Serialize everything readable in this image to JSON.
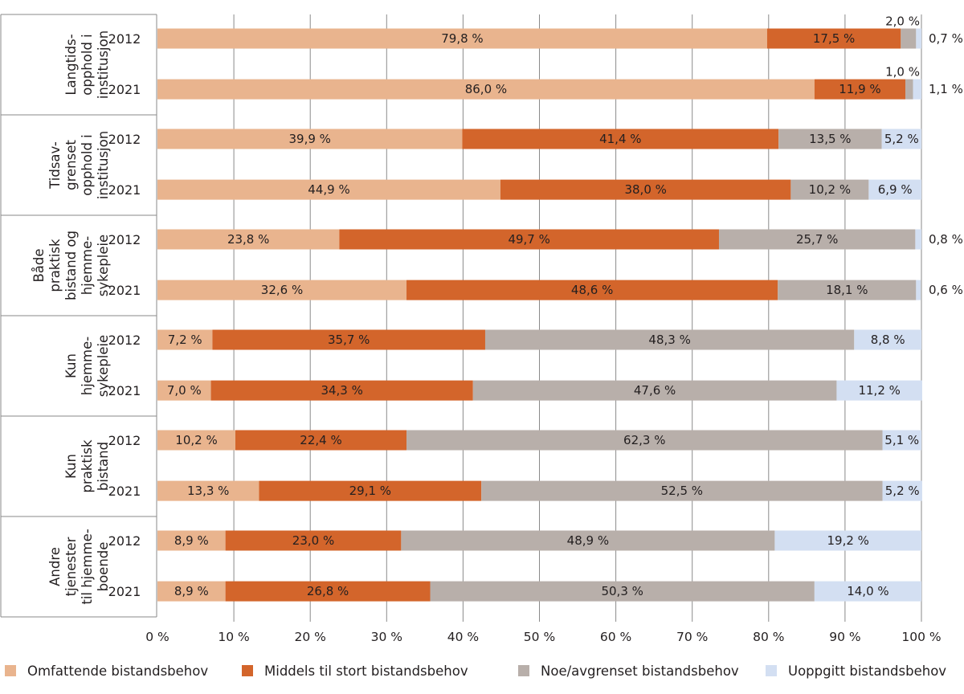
{
  "chart_data": {
    "type": "bar",
    "orientation": "horizontal",
    "stacked": true,
    "title": "",
    "xlabel": "",
    "ylabel": "",
    "xlim": [
      0,
      100
    ],
    "x_ticks": [
      "0 %",
      "10 %",
      "20 %",
      "30 %",
      "40 %",
      "50 %",
      "60 %",
      "70 %",
      "80 %",
      "90 %",
      "100 %"
    ],
    "grid": "vertical",
    "legend_position": "bottom",
    "groups": [
      {
        "label_lines": [
          "Langtids-",
          "opphold i",
          "institusjon"
        ],
        "categories": [
          "2012",
          "2021"
        ]
      },
      {
        "label_lines": [
          "Tidsav-",
          "grenset",
          "opphold i",
          "institusjon"
        ],
        "categories": [
          "2012",
          "2021"
        ]
      },
      {
        "label_lines": [
          "Både",
          "praktisk",
          "bistand og",
          "hjemme-",
          "sykepleie"
        ],
        "categories": [
          "2012",
          "2021"
        ]
      },
      {
        "label_lines": [
          "Kun",
          "hjemme-",
          "sykepleie"
        ],
        "categories": [
          "2012",
          "2021"
        ]
      },
      {
        "label_lines": [
          "Kun",
          "praktisk",
          "bistand"
        ],
        "categories": [
          "2012",
          "2021"
        ]
      },
      {
        "label_lines": [
          "Andre",
          "tjenester",
          "til hjemme-",
          "boende"
        ],
        "categories": [
          "2012",
          "2021"
        ]
      }
    ],
    "series": [
      {
        "name": "Omfattende bistandsbehov",
        "color": "#e9b48e",
        "values": [
          79.8,
          86.0,
          39.9,
          44.9,
          23.8,
          32.6,
          7.2,
          7.0,
          10.2,
          13.3,
          8.9,
          8.9
        ],
        "labels": [
          "79,8 %",
          "86,0 %",
          "39,9 %",
          "44,9 %",
          "23,8 %",
          "32,6 %",
          "7,2 %",
          "7,0 %",
          "10,2 %",
          "13,3 %",
          "8,9 %",
          "8,9 %"
        ]
      },
      {
        "name": "Middels til stort bistandsbehov",
        "color": "#d3652b",
        "values": [
          17.5,
          11.9,
          41.4,
          38.0,
          49.7,
          48.6,
          35.7,
          34.3,
          22.4,
          29.1,
          23.0,
          26.8
        ],
        "labels": [
          "17,5 %",
          "11,9 %",
          "41,4 %",
          "38,0 %",
          "49,7 %",
          "48,6 %",
          "35,7 %",
          "34,3 %",
          "22,4 %",
          "29,1 %",
          "23,0 %",
          "26,8 %"
        ]
      },
      {
        "name": "Noe/avgrenset bistandsbehov",
        "color": "#b8afaa",
        "values": [
          2.0,
          1.0,
          13.5,
          10.2,
          25.7,
          18.1,
          48.3,
          47.6,
          62.3,
          52.5,
          48.9,
          50.3
        ],
        "labels": [
          "2,0 %",
          "1,0 %",
          "13,5 %",
          "10,2 %",
          "25,7 %",
          "18,1 %",
          "48,3 %",
          "47,6 %",
          "62,3 %",
          "52,5 %",
          "48,9 %",
          "50,3 %"
        ]
      },
      {
        "name": "Uoppgitt bistandsbehov",
        "color": "#d3dff2",
        "values": [
          0.7,
          1.1,
          5.2,
          6.9,
          0.8,
          0.6,
          8.8,
          11.2,
          5.1,
          5.2,
          19.2,
          14.0
        ],
        "labels": [
          "0,7 %",
          "1,1 %",
          "5,2 %",
          "6,9 %",
          "0,8 %",
          "0,6 %",
          "8,8 %",
          "11,2 %",
          "5,1 %",
          "5,2 %",
          "19,2 %",
          "14,0 %"
        ]
      }
    ],
    "label_placement": {
      "above_bar": [
        [
          2,
          0
        ],
        [
          2,
          1
        ]
      ],
      "right_of_bar": [
        [
          3,
          0
        ],
        [
          3,
          1
        ],
        [
          3,
          4
        ],
        [
          3,
          5
        ]
      ]
    }
  },
  "legend": {
    "items": [
      {
        "label": "Omfattende bistandsbehov",
        "color": "#e9b48e"
      },
      {
        "label": "Middels til stort bistandsbehov",
        "color": "#d3652b"
      },
      {
        "label": "Noe/avgrenset bistandsbehov",
        "color": "#b8afaa"
      },
      {
        "label": "Uoppgitt bistandsbehov",
        "color": "#d3dff2"
      }
    ]
  }
}
